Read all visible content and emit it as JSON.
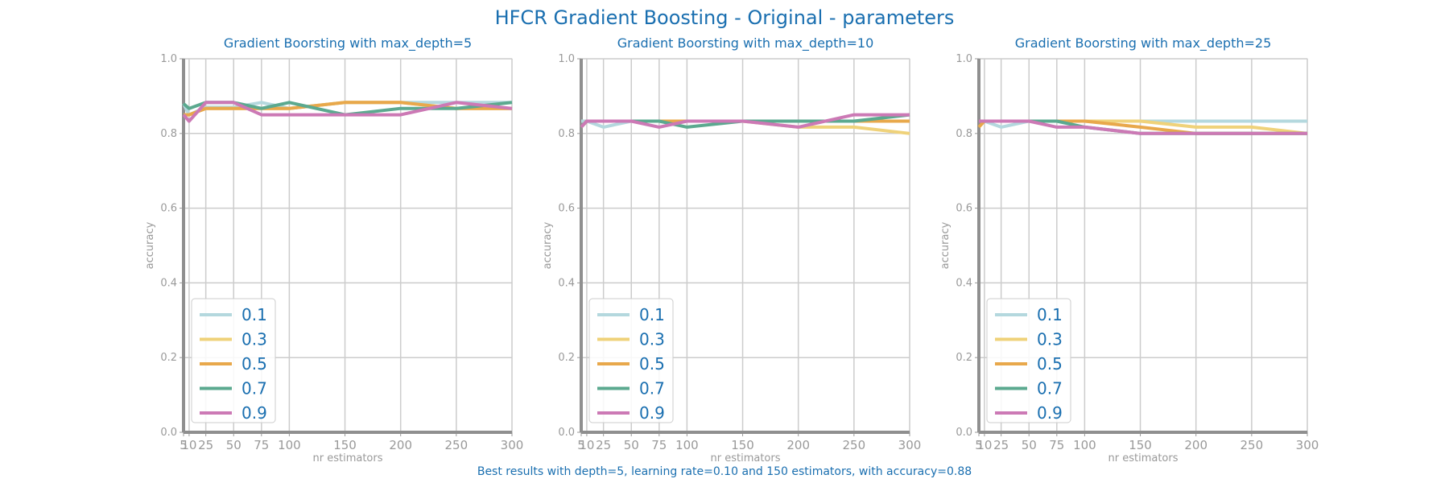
{
  "title": "HFCR Gradient Boosting - Original - parameters",
  "footer": "Best results with depth=5, learning rate=0.10 and 150 estimators, with accuracy=0.88",
  "colors": {
    "0.1": "#b4d8de",
    "0.3": "#efd27a",
    "0.5": "#e8a84b",
    "0.7": "#5ba98f",
    "0.9": "#cc79b5"
  },
  "chart_data": [
    {
      "type": "line",
      "title": "Gradient Boorsting with max_depth=5",
      "xlabel": "nr estimators",
      "ylabel": "accuracy",
      "xlim": [
        5,
        300
      ],
      "ylim": [
        0.0,
        1.0
      ],
      "grid": true,
      "legend_position": "lower-left",
      "x": [
        5,
        10,
        25,
        50,
        75,
        100,
        150,
        200,
        250,
        300
      ],
      "x_tick_labels": [
        "5",
        "10",
        "25",
        "50",
        "75",
        "100",
        "150",
        "200",
        "250",
        "300"
      ],
      "y_tick_labels": [
        "0.0",
        "0.2",
        "0.4",
        "0.6",
        "0.8",
        "1.0"
      ],
      "series": [
        {
          "name": "0.1",
          "values": [
            0.88,
            0.85,
            0.87,
            0.87,
            0.883,
            0.867,
            0.883,
            0.883,
            0.883,
            0.883
          ]
        },
        {
          "name": "0.3",
          "values": [
            0.85,
            0.85,
            0.867,
            0.867,
            0.867,
            0.867,
            0.883,
            0.883,
            0.867,
            0.867
          ]
        },
        {
          "name": "0.5",
          "values": [
            0.85,
            0.85,
            0.867,
            0.867,
            0.867,
            0.867,
            0.883,
            0.883,
            0.867,
            0.867
          ]
        },
        {
          "name": "0.7",
          "values": [
            0.88,
            0.867,
            0.883,
            0.883,
            0.867,
            0.883,
            0.85,
            0.867,
            0.867,
            0.883
          ]
        },
        {
          "name": "0.9",
          "values": [
            0.85,
            0.833,
            0.883,
            0.883,
            0.85,
            0.85,
            0.85,
            0.85,
            0.883,
            0.867
          ]
        }
      ]
    },
    {
      "type": "line",
      "title": "Gradient Boorsting with max_depth=10",
      "xlabel": "nr estimators",
      "ylabel": "accuracy",
      "xlim": [
        5,
        300
      ],
      "ylim": [
        0.0,
        1.0
      ],
      "grid": true,
      "legend_position": "lower-left",
      "x": [
        5,
        10,
        25,
        50,
        75,
        100,
        150,
        200,
        250,
        300
      ],
      "x_tick_labels": [
        "5",
        "10",
        "25",
        "50",
        "75",
        "100",
        "150",
        "200",
        "250",
        "300"
      ],
      "y_tick_labels": [
        "0.0",
        "0.2",
        "0.4",
        "0.6",
        "0.8",
        "1.0"
      ],
      "series": [
        {
          "name": "0.1",
          "values": [
            0.833,
            0.833,
            0.817,
            0.833,
            0.833,
            0.833,
            0.833,
            0.833,
            0.833,
            0.833
          ]
        },
        {
          "name": "0.3",
          "values": [
            0.817,
            0.833,
            0.833,
            0.833,
            0.833,
            0.833,
            0.833,
            0.817,
            0.817,
            0.8
          ]
        },
        {
          "name": "0.5",
          "values": [
            0.817,
            0.833,
            0.833,
            0.833,
            0.833,
            0.833,
            0.833,
            0.833,
            0.833,
            0.833
          ]
        },
        {
          "name": "0.7",
          "values": [
            0.817,
            0.833,
            0.833,
            0.833,
            0.833,
            0.817,
            0.833,
            0.833,
            0.833,
            0.85
          ]
        },
        {
          "name": "0.9",
          "values": [
            0.817,
            0.833,
            0.833,
            0.833,
            0.817,
            0.833,
            0.833,
            0.817,
            0.85,
            0.85
          ]
        }
      ]
    },
    {
      "type": "line",
      "title": "Gradient Boorsting with max_depth=25",
      "xlabel": "nr estimators",
      "ylabel": "accuracy",
      "xlim": [
        5,
        300
      ],
      "ylim": [
        0.0,
        1.0
      ],
      "grid": true,
      "legend_position": "lower-left",
      "x": [
        5,
        10,
        25,
        50,
        75,
        100,
        150,
        200,
        250,
        300
      ],
      "x_tick_labels": [
        "5",
        "10",
        "25",
        "50",
        "75",
        "100",
        "150",
        "200",
        "250",
        "300"
      ],
      "y_tick_labels": [
        "0.0",
        "0.2",
        "0.4",
        "0.6",
        "0.8",
        "1.0"
      ],
      "series": [
        {
          "name": "0.1",
          "values": [
            0.833,
            0.833,
            0.817,
            0.833,
            0.833,
            0.833,
            0.833,
            0.833,
            0.833,
            0.833
          ]
        },
        {
          "name": "0.3",
          "values": [
            0.833,
            0.833,
            0.833,
            0.833,
            0.833,
            0.833,
            0.833,
            0.817,
            0.817,
            0.8
          ]
        },
        {
          "name": "0.5",
          "values": [
            0.817,
            0.833,
            0.833,
            0.833,
            0.833,
            0.833,
            0.817,
            0.8,
            0.8,
            0.8
          ]
        },
        {
          "name": "0.7",
          "values": [
            0.833,
            0.833,
            0.833,
            0.833,
            0.833,
            0.817,
            0.8,
            0.8,
            0.8,
            0.8
          ]
        },
        {
          "name": "0.9",
          "values": [
            0.833,
            0.833,
            0.833,
            0.833,
            0.817,
            0.817,
            0.8,
            0.8,
            0.8,
            0.8
          ]
        }
      ]
    }
  ]
}
